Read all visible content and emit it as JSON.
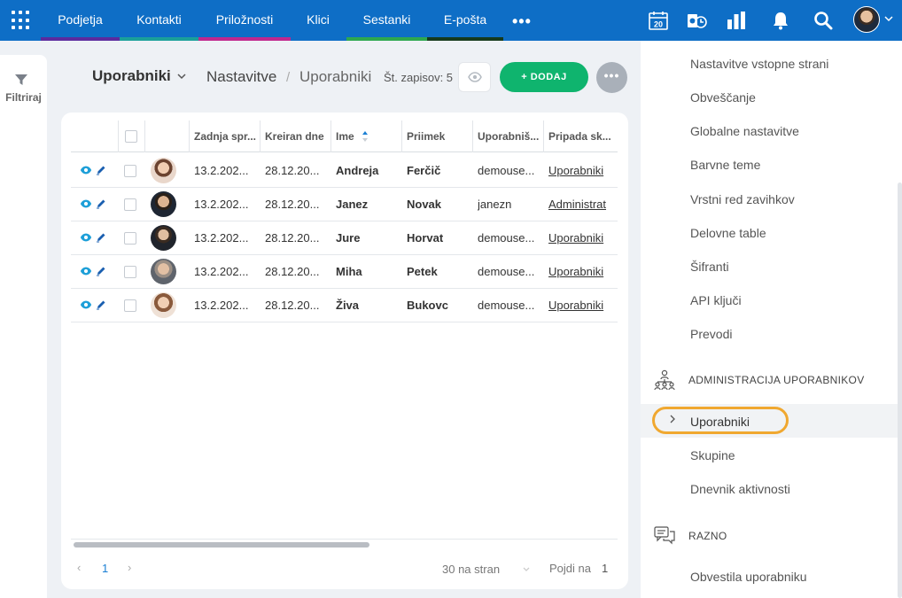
{
  "topnav": {
    "items": [
      {
        "label": "Podjetja",
        "color": "#5b2b9e"
      },
      {
        "label": "Kontakti",
        "color": "#1aa09a"
      },
      {
        "label": "Priložnosti",
        "color": "#c0288e"
      },
      {
        "label": "Klici",
        "color": "#0e6ec6"
      },
      {
        "label": "Sestanki",
        "color": "#2ea84f"
      },
      {
        "label": "E-pošta",
        "color": "#163a1c"
      }
    ],
    "more_label": "•••",
    "calendar_day": "20"
  },
  "filter": {
    "label": "Filtriraj"
  },
  "header": {
    "title": "Uporabniki",
    "breadcrumb": [
      "Nastavitve",
      "Uporabniki"
    ],
    "breadcrumb_sep": "/",
    "count_label": "Št. zapisov: 5",
    "add_label": "+ DODAJ",
    "more_label": "•••"
  },
  "table": {
    "columns": [
      "Zadnja spr...",
      "Kreiran dne",
      "Ime",
      "Priimek",
      "Uporabniš...",
      "Pripada sk..."
    ],
    "rows": [
      {
        "modified": "13.2.202...",
        "created": "28.12.20...",
        "first": "Andreja",
        "last": "Ferčič",
        "username": "demouse...",
        "group": "Uporabniki"
      },
      {
        "modified": "13.2.202...",
        "created": "28.12.20...",
        "first": "Janez",
        "last": "Novak",
        "username": "janezn",
        "group": "Administrat"
      },
      {
        "modified": "13.2.202...",
        "created": "28.12.20...",
        "first": "Jure",
        "last": "Horvat",
        "username": "demouse...",
        "group": "Uporabniki"
      },
      {
        "modified": "13.2.202...",
        "created": "28.12.20...",
        "first": "Miha",
        "last": "Petek",
        "username": "demouse...",
        "group": "Uporabniki"
      },
      {
        "modified": "13.2.202...",
        "created": "28.12.20...",
        "first": "Živa",
        "last": "Bukovc",
        "username": "demouse...",
        "group": "Uporabniki"
      }
    ],
    "pager": {
      "prev": "‹",
      "page": "1",
      "next": "›",
      "per_page": "30 na stran",
      "goto_label": "Pojdi na",
      "goto_value": "1"
    }
  },
  "settings_panel": {
    "items_top": [
      "Nastavitve vstopne strani",
      "Obveščanje",
      "Globalne nastavitve",
      "Barvne teme",
      "Vrstni red zavihkov",
      "Delovne table",
      "Šifranti",
      "API ključi",
      "Prevodi"
    ],
    "section_admin": "ADMINISTRACIJA UPORABNIKOV",
    "admin_items": [
      "Uporabniki",
      "Skupine",
      "Dnevnik aktivnosti"
    ],
    "section_misc": "RAZNO",
    "misc_items": [
      "Obvestila uporabniku"
    ]
  },
  "colors": {
    "brand": "#0e6ec6",
    "add": "#0fb46e",
    "highlight": "#f0a830",
    "link": "#1a7fd4"
  }
}
